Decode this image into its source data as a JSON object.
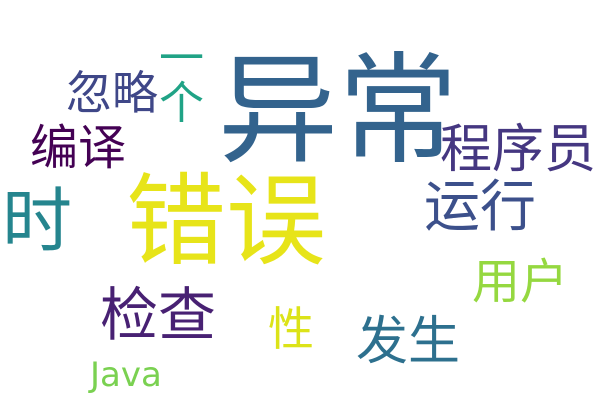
{
  "words": {
    "yichang": {
      "text": "异常",
      "color": "#33638d"
    },
    "cuowu": {
      "text": "错误",
      "color": "#e7e419"
    },
    "shi": {
      "text": "时",
      "color": "#25858e"
    },
    "yige": {
      "text": "一个",
      "color": "#20a386"
    },
    "hulue": {
      "text": "忽略",
      "color": "#3f4788"
    },
    "bianyi": {
      "text": "编译",
      "color": "#440154"
    },
    "chengxuyuan": {
      "text": "程序员",
      "color": "#453781"
    },
    "yunxing": {
      "text": "运行",
      "color": "#3c508b"
    },
    "yonghu": {
      "text": "用户",
      "color": "#95d840"
    },
    "jiancha": {
      "text": "检查",
      "color": "#482173"
    },
    "xing": {
      "text": "性",
      "color": "#dce318"
    },
    "fasheng": {
      "text": "发生",
      "color": "#2d708e"
    },
    "java": {
      "text": "Java",
      "color": "#7ad151"
    }
  }
}
